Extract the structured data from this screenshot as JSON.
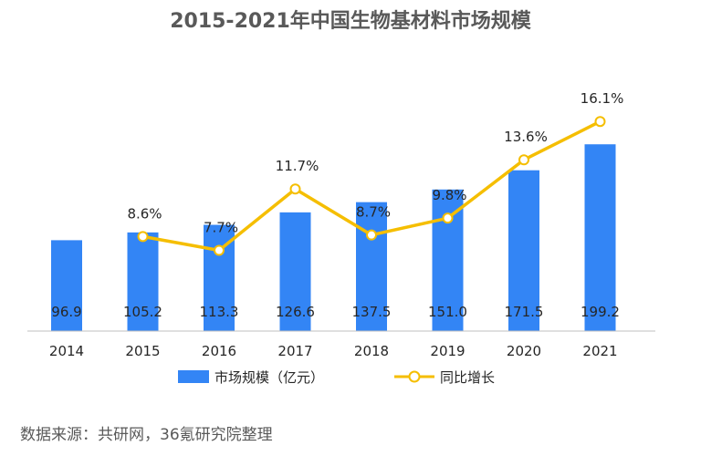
{
  "chart_data": {
    "type": "bar",
    "title": "2015-2021年中国生物基材料市场规模",
    "categories": [
      "2014",
      "2015",
      "2016",
      "2017",
      "2018",
      "2019",
      "2020",
      "2021"
    ],
    "series": [
      {
        "name": "市场规模（亿元）",
        "kind": "bar",
        "axis": "left",
        "values": [
          96.9,
          105.2,
          113.3,
          126.6,
          137.5,
          151.0,
          171.5,
          199.2
        ],
        "labels": [
          "96.9",
          "105.2",
          "113.3",
          "126.6",
          "137.5",
          "151.0",
          "171.5",
          "199.2"
        ]
      },
      {
        "name": "同比增长",
        "kind": "line",
        "axis": "right",
        "x": [
          "2015",
          "2016",
          "2017",
          "2018",
          "2019",
          "2020",
          "2021"
        ],
        "values": [
          8.6,
          7.7,
          11.7,
          8.7,
          9.8,
          13.6,
          16.1
        ],
        "labels": [
          "8.6%",
          "7.7%",
          "11.7%",
          "8.7%",
          "9.8%",
          "13.6%",
          "16.1%"
        ]
      }
    ],
    "legend_position": "bottom",
    "grid": false,
    "colors": {
      "bar": "#3385F5",
      "line": "#F5BE00"
    }
  },
  "source": "数据来源：共研网，36氪研究院整理"
}
